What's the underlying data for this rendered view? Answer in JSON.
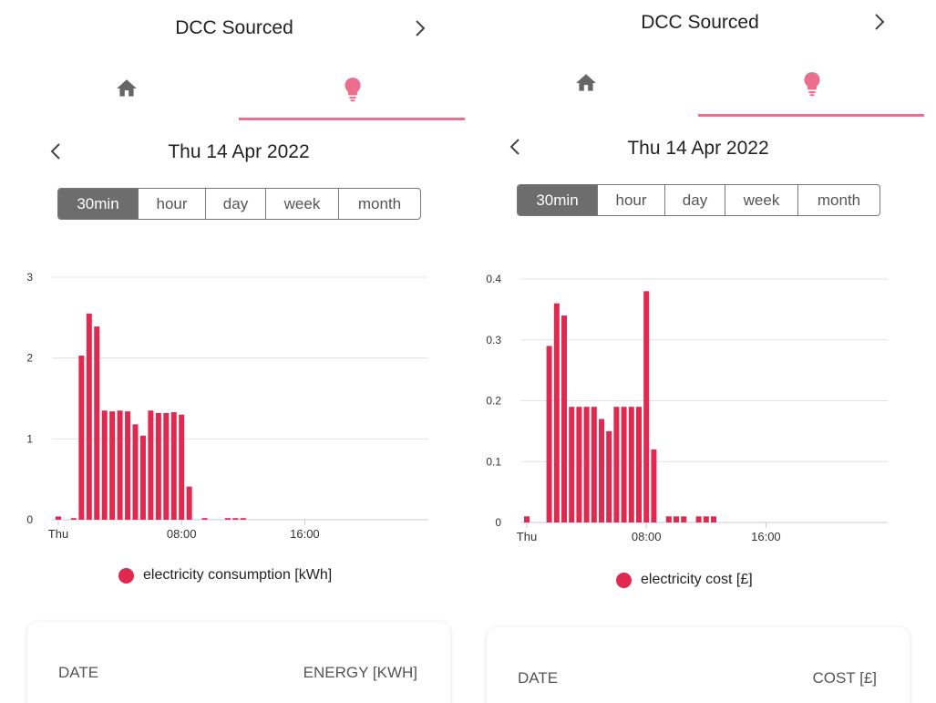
{
  "theme": {
    "accent": "#ec6e8f",
    "bar": "#e0294f",
    "active_segment": "#6d6d6d"
  },
  "panels": [
    {
      "header": {
        "title": "DCC Sourced",
        "next_icon": "chevron-right-icon"
      },
      "tabs": [
        {
          "icon": "home-icon",
          "selected": false
        },
        {
          "icon": "lightbulb-icon",
          "selected": true
        }
      ],
      "date": {
        "prev_icon": "chevron-left-icon",
        "label": "Thu 14 Apr 2022"
      },
      "ranges": [
        "30min",
        "hour",
        "day",
        "week",
        "month"
      ],
      "active_range": "30min",
      "legend": "electricity consumption [kWh]",
      "table": {
        "col_left": "DATE",
        "col_right": "ENERGY [KWH]"
      }
    },
    {
      "header": {
        "title": "DCC Sourced",
        "next_icon": "chevron-right-icon"
      },
      "tabs": [
        {
          "icon": "home-icon",
          "selected": false
        },
        {
          "icon": "lightbulb-icon",
          "selected": true
        }
      ],
      "date": {
        "prev_icon": "chevron-left-icon",
        "label": "Thu 14 Apr 2022"
      },
      "ranges": [
        "30min",
        "hour",
        "day",
        "week",
        "month"
      ],
      "active_range": "30min",
      "legend": "electricity cost [£]",
      "table": {
        "col_left": "DATE",
        "col_right": "COST [£]"
      }
    }
  ],
  "chart_data": [
    {
      "type": "bar",
      "x_ticks": [
        "Thu",
        "08:00",
        "16:00"
      ],
      "x_tick_slots": [
        0,
        16,
        32
      ],
      "slots": 48,
      "ylim": [
        0,
        3
      ],
      "yticks": [
        "0",
        "1",
        "2",
        "3"
      ],
      "grid": true,
      "series": [
        {
          "name": "electricity consumption [kWh]",
          "values": [
            0.04,
            0,
            0.02,
            2.03,
            2.55,
            2.39,
            1.35,
            1.34,
            1.35,
            1.34,
            1.18,
            1.04,
            1.35,
            1.32,
            1.32,
            1.33,
            1.3,
            0.41,
            0,
            0.02,
            0,
            0,
            0.02,
            0.02,
            0.02,
            0,
            0,
            0,
            0,
            0,
            0,
            0,
            0,
            0,
            0,
            0,
            0,
            0,
            0,
            0,
            0,
            0,
            0,
            0,
            0,
            0,
            0,
            0
          ]
        }
      ]
    },
    {
      "type": "bar",
      "x_ticks": [
        "Thu",
        "08:00",
        "16:00"
      ],
      "x_tick_slots": [
        0,
        16,
        32
      ],
      "slots": 48,
      "ylim": [
        0,
        0.4
      ],
      "yticks": [
        "0",
        "0.1",
        "0.2",
        "0.3",
        "0.4"
      ],
      "grid": true,
      "series": [
        {
          "name": "electricity cost [£]",
          "values": [
            0.01,
            0,
            0,
            0.29,
            0.36,
            0.34,
            0.19,
            0.19,
            0.19,
            0.19,
            0.17,
            0.15,
            0.19,
            0.19,
            0.19,
            0.19,
            0.38,
            0.12,
            0,
            0.01,
            0.01,
            0.01,
            0,
            0.01,
            0.01,
            0.01,
            0,
            0,
            0,
            0,
            0,
            0,
            0,
            0,
            0,
            0,
            0,
            0,
            0,
            0,
            0,
            0,
            0,
            0,
            0,
            0,
            0,
            0
          ]
        }
      ]
    }
  ]
}
